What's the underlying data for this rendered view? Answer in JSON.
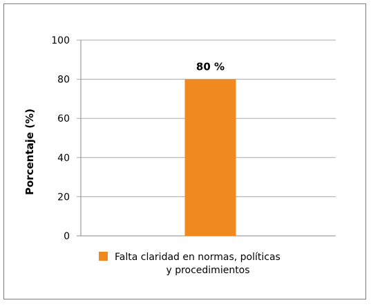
{
  "chart_data": {
    "type": "bar",
    "categories": [
      "Falta claridad en normas, políticas y procedimientos"
    ],
    "series": [
      {
        "name": "Falta claridad en normas, políticas y procedimientos",
        "values": [
          80
        ],
        "color": "#f0891e"
      }
    ],
    "data_labels": [
      "80 %"
    ],
    "ylabel": "Porcentaje (%)",
    "xlabel": "",
    "ylim": [
      0,
      100
    ],
    "yticks": [
      0,
      20,
      40,
      60,
      80,
      100
    ],
    "grid": true,
    "legend": {
      "position": "bottom",
      "lines": [
        "Falta claridad en normas, políticas",
        "y procedimientos"
      ]
    }
  }
}
